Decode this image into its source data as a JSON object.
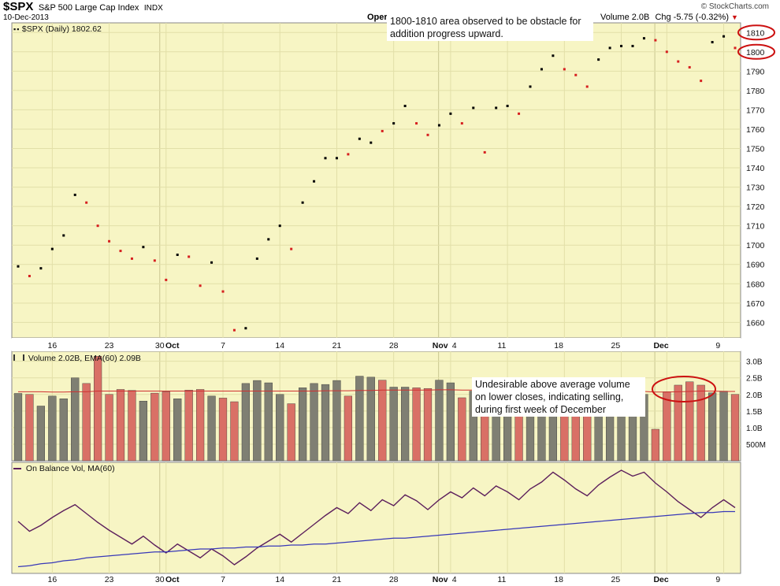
{
  "header": {
    "symbol": "$SPX",
    "name": "S&P 500 Large Cap Index",
    "exchange": "INDX",
    "date": "10-Dec-2013",
    "watermark": "© StockCharts.com",
    "open_label": "Oper",
    "volume_readout": "Volume 2.0B",
    "change_readout": "Chg -5.75 (-0.32%)",
    "change_arrow": "▼"
  },
  "price_panel": {
    "legend": "$SPX (Daily) 1802.62"
  },
  "volume_panel": {
    "legend": "Volume 2.02B, EMA(60) 2.09B"
  },
  "obv_panel": {
    "legend": "On Balance Vol, MA(60)"
  },
  "annotations": {
    "resistance_note": "1800-1810 area observed to be obstacle for addition progress upward.",
    "volume_note": "Undesirable above average volume on lower closes, indicating selling, during first week of December"
  },
  "colors": {
    "panel_bg": "#f7f5c4",
    "grid": "#e2dfa8",
    "up": "#000000",
    "down": "#d62020",
    "up_bar": "#7f7f73",
    "down_bar": "#d97066",
    "ema": "#d03030",
    "obv": "#5c1f5c",
    "obv_ma": "#3838b8",
    "highlight": "#cc1111"
  },
  "chart_data": [
    {
      "type": "scatter",
      "title": "$SPX (Daily) 1802.62",
      "ylim": [
        1652,
        1815
      ],
      "y_ticks": [
        1660,
        1670,
        1680,
        1690,
        1700,
        1710,
        1720,
        1730,
        1740,
        1750,
        1760,
        1770,
        1780,
        1790,
        1800,
        1810
      ],
      "x_tick_labels": [
        "16",
        "23",
        "30",
        "Oct",
        "7",
        "14",
        "21",
        "28",
        "Nov",
        "4",
        "11",
        "18",
        "25",
        "Dec",
        "9"
      ],
      "closes": [
        1689,
        1684,
        1688,
        1698,
        1705,
        1726,
        1722,
        1710,
        1702,
        1697,
        1693,
        1699,
        1692,
        1682,
        1695,
        1694,
        1679,
        1691,
        1676,
        1656,
        1657,
        1693,
        1703,
        1710,
        1698,
        1722,
        1733,
        1745,
        1745,
        1747,
        1755,
        1753,
        1759,
        1763,
        1772,
        1763,
        1757,
        1762,
        1768,
        1763,
        1771,
        1748,
        1771,
        1772,
        1768,
        1782,
        1791,
        1798,
        1791,
        1788,
        1782,
        1796,
        1802,
        1803,
        1803,
        1807,
        1806,
        1800,
        1795,
        1792,
        1785,
        1805,
        1808,
        1802
      ],
      "direction": [
        "up",
        "down",
        "up",
        "up",
        "up",
        "up",
        "down",
        "down",
        "down",
        "down",
        "down",
        "up",
        "down",
        "down",
        "up",
        "down",
        "down",
        "up",
        "down",
        "down",
        "up",
        "up",
        "up",
        "up",
        "down",
        "up",
        "up",
        "up",
        "up",
        "down",
        "up",
        "up",
        "down",
        "up",
        "up",
        "down",
        "down",
        "up",
        "up",
        "down",
        "up",
        "down",
        "up",
        "up",
        "down",
        "up",
        "up",
        "up",
        "down",
        "down",
        "down",
        "up",
        "up",
        "up",
        "up",
        "up",
        "down",
        "down",
        "down",
        "down",
        "down",
        "up",
        "up",
        "down"
      ]
    },
    {
      "type": "bar",
      "title": "Volume 2.02B, EMA(60) 2.09B",
      "unit": "B",
      "ylim": [
        0,
        3.3
      ],
      "y_tick_labels": [
        "3.0B",
        "2.5B",
        "2.0B",
        "1.5B",
        "1.0B",
        "500M"
      ],
      "y_tick_values": [
        3.0,
        2.5,
        2.0,
        1.5,
        1.0,
        0.5
      ],
      "values": [
        2.03,
        2.0,
        1.65,
        1.95,
        1.87,
        2.5,
        2.33,
        3.15,
        2.0,
        2.15,
        2.12,
        1.8,
        2.04,
        2.08,
        1.87,
        2.13,
        2.15,
        1.95,
        1.89,
        1.78,
        2.33,
        2.42,
        2.35,
        2.0,
        1.72,
        2.2,
        2.33,
        2.3,
        2.42,
        1.95,
        2.55,
        2.52,
        2.43,
        2.22,
        2.22,
        2.2,
        2.18,
        2.43,
        2.35,
        1.9,
        2.1,
        1.55,
        1.88,
        2.1,
        2.0,
        1.9,
        1.83,
        1.8,
        1.77,
        1.92,
        1.74,
        1.9,
        1.89,
        1.98,
        1.99,
        2.0,
        0.95,
        2.08,
        2.28,
        2.38,
        2.28,
        2.05,
        2.1,
        2.0
      ],
      "ema": [
        2.08,
        2.08,
        2.08,
        2.07,
        2.07,
        2.08,
        2.08,
        2.1,
        2.1,
        2.1,
        2.1,
        2.1,
        2.1,
        2.1,
        2.1,
        2.1,
        2.1,
        2.1,
        2.1,
        2.1,
        2.1,
        2.1,
        2.1,
        2.1,
        2.1,
        2.1,
        2.1,
        2.11,
        2.11,
        2.11,
        2.12,
        2.12,
        2.13,
        2.13,
        2.13,
        2.13,
        2.13,
        2.14,
        2.14,
        2.13,
        2.13,
        2.12,
        2.12,
        2.12,
        2.11,
        2.11,
        2.11,
        2.1,
        2.1,
        2.1,
        2.09,
        2.09,
        2.09,
        2.09,
        2.09,
        2.09,
        2.07,
        2.07,
        2.08,
        2.09,
        2.1,
        2.1,
        2.09,
        2.09
      ]
    },
    {
      "type": "line",
      "title": "On Balance Vol, MA(60)",
      "ylim": [
        0,
        100
      ],
      "series": [
        {
          "name": "On Balance Vol",
          "values": [
            48,
            38,
            44,
            52,
            59,
            65,
            56,
            47,
            39,
            32,
            25,
            33,
            24,
            16,
            25,
            18,
            11,
            20,
            13,
            4,
            12,
            21,
            28,
            35,
            27,
            36,
            45,
            54,
            62,
            56,
            67,
            59,
            70,
            64,
            75,
            69,
            60,
            70,
            78,
            72,
            82,
            74,
            84,
            78,
            70,
            81,
            88,
            98,
            90,
            81,
            74,
            85,
            93,
            100,
            94,
            98,
            87,
            78,
            68,
            60,
            52,
            62,
            70,
            62
          ]
        },
        {
          "name": "MA(60)",
          "values": [
            2,
            3,
            5,
            6,
            8,
            9,
            11,
            12,
            13,
            14,
            15,
            16,
            17,
            17,
            18,
            19,
            20,
            20,
            21,
            21,
            22,
            22,
            23,
            23,
            24,
            24,
            25,
            25,
            26,
            27,
            28,
            29,
            30,
            31,
            31,
            32,
            33,
            34,
            35,
            36,
            37,
            38,
            39,
            40,
            41,
            42,
            43,
            44,
            45,
            46,
            47,
            48,
            49,
            50,
            51,
            52,
            53,
            54,
            55,
            56,
            57,
            57,
            58,
            58
          ]
        }
      ]
    }
  ]
}
